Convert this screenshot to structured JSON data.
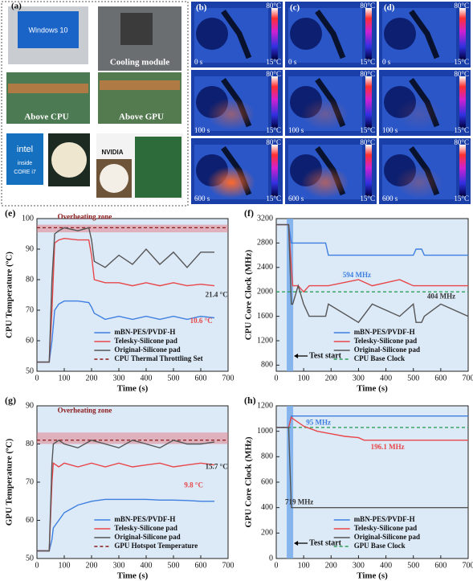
{
  "panels": {
    "a": {
      "label": "(a)",
      "captions": [
        "Windows 10",
        "Cooling module",
        "Above CPU",
        "Above GPU",
        "intel",
        "inside",
        "CORE i7",
        "NVIDIA"
      ]
    },
    "thermal": {
      "columns": [
        "(b)",
        "(c)",
        "(d)"
      ],
      "times": [
        "0 s",
        "100 s",
        "600 s"
      ],
      "max": "80°C",
      "min": "15°C"
    }
  },
  "chart_data": [
    {
      "type": "line",
      "title": "(e)",
      "x_label": "Time (s)",
      "y_label": "CPU Temperature (ºC)",
      "x": [
        0,
        45,
        55,
        65,
        80,
        100,
        150,
        190,
        200,
        210,
        250,
        300,
        350,
        400,
        450,
        500,
        550,
        600,
        650
      ],
      "series": [
        {
          "name": "mBN-PES/PVDF-H",
          "color": "#3d7fe0",
          "values": [
            53,
            53,
            60,
            70,
            72,
            73,
            73,
            72.5,
            71,
            69,
            67,
            68,
            67,
            68,
            67,
            68,
            67,
            68,
            67.5
          ]
        },
        {
          "name": "Telesky-Silicone pad",
          "color": "#e8474a",
          "values": [
            53,
            53,
            70,
            92,
            93,
            93.5,
            93,
            93,
            88,
            80,
            79,
            79,
            78,
            79,
            78,
            79,
            78,
            78.5,
            78
          ]
        },
        {
          "name": "Original-Silicone pad",
          "color": "#555555",
          "values": [
            53,
            53,
            80,
            95,
            96,
            97,
            96,
            97,
            93,
            86,
            84,
            88,
            85,
            90,
            85,
            89,
            84,
            89,
            89
          ]
        }
      ],
      "reference": {
        "name": "CPU Thermal Throttling Set",
        "color": "#8b1a1a",
        "value": 97
      },
      "band": [
        95.5,
        98
      ],
      "annotations": [
        "Overheating zone",
        "21.4 °C",
        "10.6 °C"
      ],
      "xlim": [
        0,
        700
      ],
      "xticks": [
        0,
        100,
        200,
        300,
        400,
        500,
        600,
        700
      ],
      "ylim": [
        50,
        100
      ],
      "yticks": [
        50,
        60,
        70,
        80,
        90,
        100
      ],
      "legend": "lower right"
    },
    {
      "type": "line",
      "title": "(f)",
      "x_label": "Time (s)",
      "y_label": "CPU Core Clock (MHz)",
      "x": [
        0,
        45,
        55,
        60,
        80,
        100,
        120,
        180,
        190,
        300,
        350,
        450,
        500,
        510,
        530,
        540,
        600,
        700
      ],
      "series": [
        {
          "name": "mBN-PES/PVDF-H",
          "color": "#3d7fe0",
          "values": [
            3100,
            3100,
            2800,
            2800,
            2800,
            2800,
            2800,
            2800,
            2600,
            2600,
            2600,
            2600,
            2600,
            2700,
            2700,
            2600,
            2600,
            2600
          ]
        },
        {
          "name": "Telesky-Silicone pad",
          "color": "#e8474a",
          "values": [
            3100,
            3100,
            2400,
            2100,
            2100,
            2000,
            2100,
            2100,
            2100,
            2200,
            2100,
            2200,
            2100,
            2100,
            2100,
            2100,
            2100,
            2100
          ]
        },
        {
          "name": "Original-Silicone pad",
          "color": "#555555",
          "values": [
            3100,
            3100,
            1800,
            1800,
            2100,
            1800,
            1600,
            1600,
            1800,
            1500,
            1800,
            1600,
            1800,
            1500,
            1500,
            1600,
            1800,
            1600
          ]
        }
      ],
      "reference": {
        "name": "CPU Base Clock",
        "color": "#2ca05a",
        "value": 2000
      },
      "marker": {
        "label": "Test start",
        "x": 50
      },
      "annotations": [
        "594 MHz",
        "404 MHz"
      ],
      "xlim": [
        0,
        700
      ],
      "xticks": [
        0,
        100,
        200,
        300,
        400,
        500,
        600,
        700
      ],
      "ylim": [
        700,
        3200
      ],
      "yticks": [
        800,
        1200,
        1600,
        2000,
        2400,
        2800,
        3200
      ],
      "legend": "lower right"
    },
    {
      "type": "line",
      "title": "(g)",
      "x_label": "Time (s)",
      "y_label": "GPU Temperature (ºC)",
      "x": [
        0,
        45,
        55,
        60,
        80,
        100,
        150,
        200,
        250,
        300,
        350,
        400,
        450,
        500,
        550,
        600,
        650
      ],
      "series": [
        {
          "name": "mBN-PES/PVDF-H",
          "color": "#3d7fe0",
          "values": [
            52,
            52,
            55,
            58,
            60,
            62,
            64,
            65,
            65.5,
            65.5,
            65.5,
            65.5,
            65.3,
            65.3,
            65.2,
            65,
            65
          ]
        },
        {
          "name": "Telesky-Silicone pad",
          "color": "#e8474a",
          "values": [
            52,
            52,
            70,
            75,
            74,
            75,
            74,
            75,
            74,
            75,
            74,
            74.5,
            75,
            74,
            74.5,
            75,
            74.5
          ]
        },
        {
          "name": "Original-Silicone pad",
          "color": "#555555",
          "values": [
            52,
            52,
            75,
            80,
            81,
            80,
            79,
            81,
            80,
            79,
            81,
            80,
            79,
            81,
            80,
            80,
            80.5
          ]
        }
      ],
      "reference": {
        "name": "GPU Hotspot Temperature",
        "color": "#8b1a1a",
        "value": 81
      },
      "band": [
        80,
        83
      ],
      "annotations": [
        "Overheating zone",
        "15.7 °C",
        "9.8 °C"
      ],
      "xlim": [
        0,
        700
      ],
      "xticks": [
        0,
        100,
        200,
        300,
        400,
        500,
        600,
        700
      ],
      "ylim": [
        50,
        90
      ],
      "yticks": [
        50,
        60,
        70,
        80,
        90
      ],
      "legend": "lower right"
    },
    {
      "type": "line",
      "title": "(h)",
      "x_label": "Time (s)",
      "y_label": "GPU Core Clock (MHz)",
      "x": [
        0,
        45,
        55,
        60,
        100,
        150,
        200,
        250,
        300,
        320,
        400,
        500,
        600,
        700
      ],
      "series": [
        {
          "name": "mBN-PES/PVDF-H",
          "color": "#3d7fe0",
          "values": [
            1030,
            1030,
            1120,
            1120,
            1120,
            1120,
            1120,
            1120,
            1120,
            1120,
            1120,
            1120,
            1120,
            1120
          ]
        },
        {
          "name": "Telesky-Silicone pad",
          "color": "#e8474a",
          "values": [
            1030,
            1030,
            1110,
            1100,
            1040,
            1000,
            980,
            960,
            950,
            930,
            930,
            930,
            930,
            930
          ]
        },
        {
          "name": "Original-Silicone pad",
          "color": "#555555",
          "values": [
            1030,
            1030,
            400,
            400,
            400,
            400,
            400,
            400,
            400,
            400,
            400,
            400,
            400,
            400
          ]
        }
      ],
      "reference": {
        "name": "GPU Base Clock",
        "color": "#2ca05a",
        "value": 1030
      },
      "marker": {
        "label": "Test start",
        "x": 50
      },
      "annotations": [
        "95 MHz",
        "196.1 MHz",
        "719 MHz"
      ],
      "xlim": [
        0,
        700
      ],
      "xticks": [
        0,
        100,
        200,
        300,
        400,
        500,
        600,
        700
      ],
      "ylim": [
        0,
        1200
      ],
      "yticks": [
        0,
        200,
        400,
        600,
        800,
        1000,
        1200
      ],
      "legend": "lower right"
    }
  ]
}
